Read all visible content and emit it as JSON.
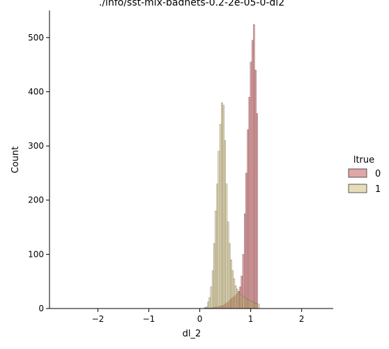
{
  "chart_data": {
    "type": "histogram",
    "title": "./info/sst-mix-badnets-0.2-2e-05-0-dl2",
    "xlabel": "dl_2",
    "ylabel": "Count",
    "xlim": [
      -2.95,
      2.62
    ],
    "ylim": [
      0,
      550
    ],
    "x_ticks": [
      -2,
      -1,
      0,
      1,
      2
    ],
    "x_tick_labels": [
      "−2",
      "−1",
      "0",
      "1",
      "2"
    ],
    "y_ticks": [
      0,
      100,
      200,
      300,
      400,
      500
    ],
    "y_tick_labels": [
      "0",
      "100",
      "200",
      "300",
      "400",
      "500"
    ],
    "grid": false,
    "legend": {
      "title": "ltrue",
      "placement": "right",
      "entries": [
        "0",
        "1"
      ]
    },
    "colors": {
      "0": "#c44e52",
      "1": "#ccb974"
    },
    "bin_width": 0.03,
    "series": [
      {
        "name": "0",
        "bin_start": 0.09,
        "counts": [
          2,
          1,
          1,
          1,
          1,
          2,
          2,
          3,
          3,
          4,
          5,
          5,
          6,
          8,
          10,
          12,
          15,
          18,
          20,
          22,
          25,
          28,
          32,
          40,
          60,
          100,
          175,
          250,
          330,
          390,
          455,
          495,
          524,
          440,
          360
        ]
      },
      {
        "name": "1",
        "bin_start": 0.12,
        "counts": [
          3,
          12,
          20,
          40,
          70,
          120,
          180,
          230,
          290,
          340,
          380,
          375,
          310,
          230,
          160,
          120,
          90,
          70,
          55,
          42,
          36,
          30,
          27,
          24,
          22,
          20,
          18,
          17,
          15,
          14,
          12,
          11,
          10,
          9,
          8
        ]
      }
    ]
  }
}
